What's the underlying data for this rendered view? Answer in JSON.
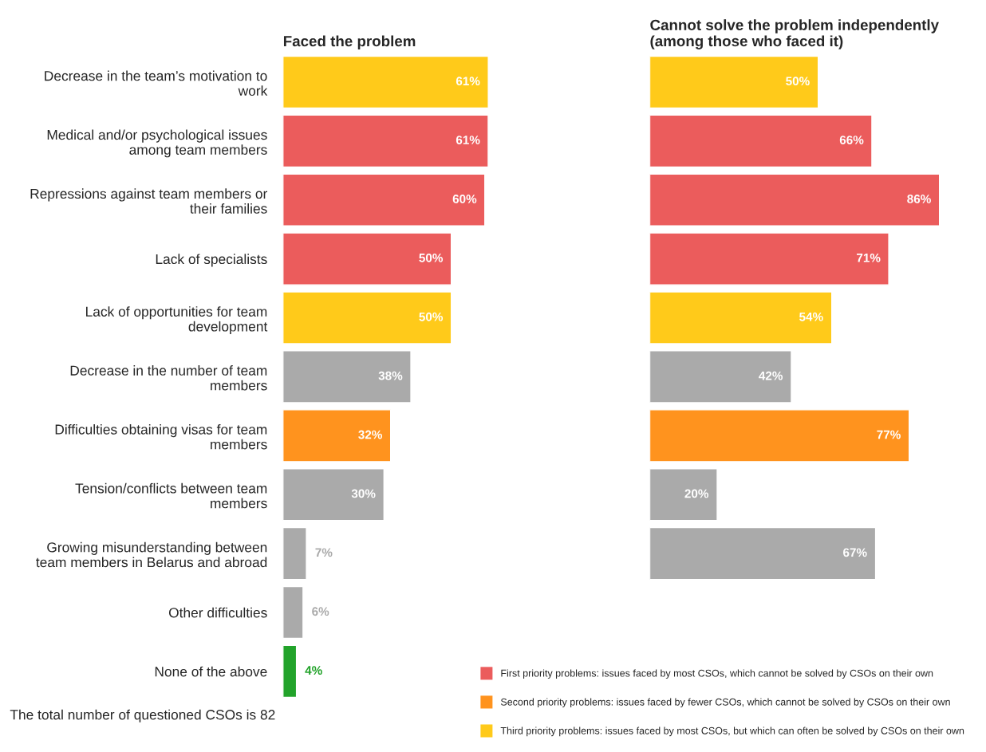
{
  "chart_data": [
    {
      "type": "bar",
      "orientation": "horizontal",
      "stacked": true,
      "title": "Faced the problem",
      "categories": [
        "Decrease in the team’s motivation to\nwork",
        "Medical and/or psychological issues\namong team members",
        "Repressions against team members or\ntheir families",
        "Lack of specialists",
        "Lack of opportunities for team\ndevelopment",
        "Decrease in the number of team\nmembers",
        "Difficulties obtaining visas for team\nmembers",
        "Tension/conflicts between team\nmembers",
        "Growing misunderstanding between\nteam members in Belarus and abroad",
        "Other difficulties",
        "None of the above"
      ],
      "series": [
        {
          "color": "#eb5c5c",
          "values": [
            null,
            61,
            60,
            50,
            null,
            null,
            null,
            null,
            null,
            null,
            null
          ],
          "value_labels": [
            null,
            "61%",
            "60%",
            "50%",
            null,
            null,
            null,
            null,
            null,
            null,
            null
          ]
        },
        {
          "color": "#ff931e",
          "values": [
            null,
            null,
            null,
            null,
            null,
            null,
            32,
            null,
            null,
            null,
            null
          ],
          "value_labels": [
            null,
            null,
            null,
            null,
            null,
            null,
            "32%",
            null,
            null,
            null,
            null
          ]
        },
        {
          "color": "#ffca1a",
          "values": [
            61,
            null,
            null,
            null,
            50,
            null,
            null,
            null,
            null,
            null,
            null
          ],
          "value_labels": [
            "61%",
            null,
            null,
            null,
            "50%",
            null,
            null,
            null,
            null,
            null,
            null
          ]
        },
        {
          "color": "#aaaaaa",
          "values": [
            null,
            null,
            null,
            null,
            null,
            38,
            null,
            30,
            7,
            6,
            null
          ],
          "value_labels": [
            null,
            null,
            null,
            null,
            null,
            "38%",
            null,
            "30%",
            "7%",
            "6%",
            null
          ]
        },
        {
          "color": "#22a32a",
          "values": [
            null,
            null,
            null,
            null,
            null,
            null,
            null,
            null,
            null,
            null,
            4
          ],
          "value_labels": [
            null,
            null,
            null,
            null,
            null,
            null,
            null,
            null,
            null,
            null,
            "4%"
          ]
        }
      ],
      "annotations": [
        "The total number of questioned CSOs is 82"
      ]
    },
    {
      "type": "bar",
      "orientation": "horizontal",
      "stacked": true,
      "legend": "bottom left",
      "title": "Cannot solve the problem independently\n(among those who faced it)",
      "categories": [
        null,
        null,
        null,
        null,
        null,
        null,
        null,
        null,
        null,
        null,
        null
      ],
      "series": [
        {
          "name": "First priority problems: issues faced by most CSOs, which cannot be solved by CSOs on their own",
          "color": "#eb5c5c",
          "values": [
            null,
            66,
            86,
            71,
            null,
            null,
            null,
            null,
            null,
            null,
            null
          ],
          "value_labels": [
            null,
            "66%",
            "86%",
            "71%",
            null,
            null,
            null,
            null,
            null,
            null,
            null
          ]
        },
        {
          "name": "Second priority problems: issues faced by fewer CSOs, which cannot be solved by CSOs on their own",
          "color": "#ff931e",
          "values": [
            null,
            null,
            null,
            null,
            null,
            null,
            77,
            null,
            null,
            null,
            null
          ],
          "value_labels": [
            null,
            null,
            null,
            null,
            null,
            null,
            "77%",
            null,
            null,
            null,
            null
          ]
        },
        {
          "name": "Third priority problems: issues faced by most CSOs, but which can often be solved by CSOs on their own",
          "color": "#ffca1a",
          "values": [
            50,
            null,
            null,
            null,
            54,
            null,
            null,
            null,
            null,
            null,
            null
          ],
          "value_labels": [
            "50%",
            null,
            null,
            null,
            "54%",
            null,
            null,
            null,
            null,
            null,
            null
          ]
        },
        {
          "color": "#aaaaaa",
          "values": [
            null,
            null,
            null,
            null,
            null,
            42,
            null,
            20,
            67,
            null,
            null
          ],
          "value_labels": [
            null,
            null,
            null,
            null,
            null,
            "42%",
            null,
            "20%",
            "67%",
            null,
            null
          ]
        }
      ]
    }
  ]
}
